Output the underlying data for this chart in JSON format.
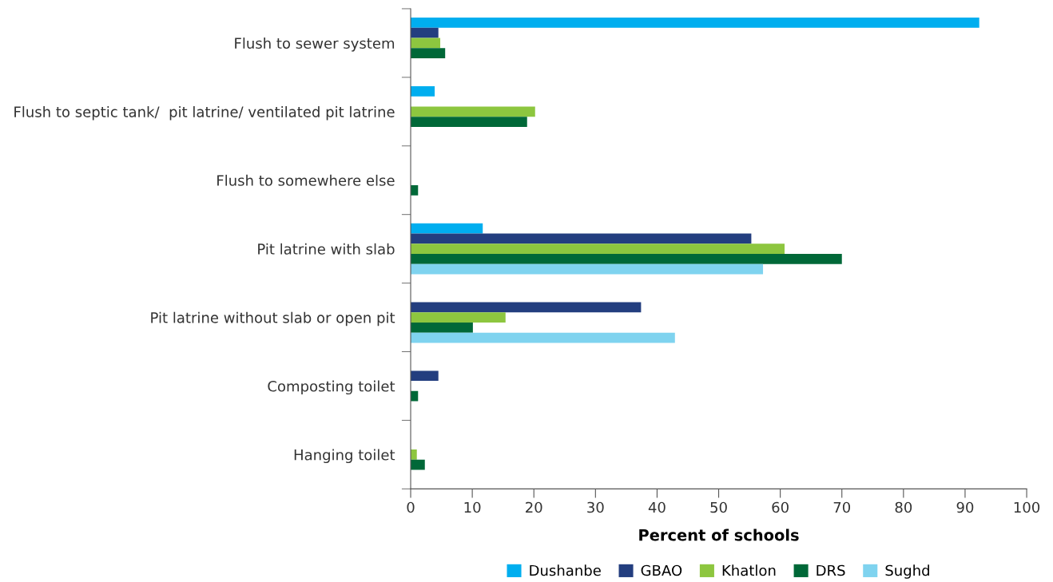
{
  "chart_data": {
    "type": "bar",
    "orientation": "horizontal",
    "xlabel": "Percent of schools",
    "categories": [
      "Flush to sewer system",
      "Flush to septic tank/  pit latrine/ ventilated pit latrine",
      "Flush to somewhere else",
      "Pit latrine with slab",
      "Pit latrine without slab or open pit",
      "Composting toilet",
      "Hanging toilet"
    ],
    "series": [
      {
        "name": "Dushanbe",
        "color": "#00aeef",
        "values": [
          92.3,
          3.9,
          null,
          11.7,
          null,
          null,
          null
        ]
      },
      {
        "name": "GBAO",
        "color": "#233e7f",
        "values": [
          4.5,
          null,
          null,
          55.3,
          37.4,
          4.5,
          null
        ]
      },
      {
        "name": "Khatlon",
        "color": "#8dc63f",
        "values": [
          4.8,
          20.2,
          null,
          60.7,
          15.4,
          null,
          1.0
        ]
      },
      {
        "name": "DRS",
        "color": "#006838",
        "values": [
          5.6,
          18.9,
          1.2,
          70.0,
          10.1,
          1.2,
          2.3
        ]
      },
      {
        "name": "Sughd",
        "color": "#7fd3ef",
        "values": [
          null,
          null,
          null,
          57.2,
          42.9,
          null,
          null
        ]
      }
    ],
    "xlim": [
      0,
      100
    ],
    "xticks": [
      0,
      10,
      20,
      30,
      40,
      50,
      60,
      70,
      80,
      90,
      100
    ],
    "grid": false,
    "legend": "bottom"
  }
}
